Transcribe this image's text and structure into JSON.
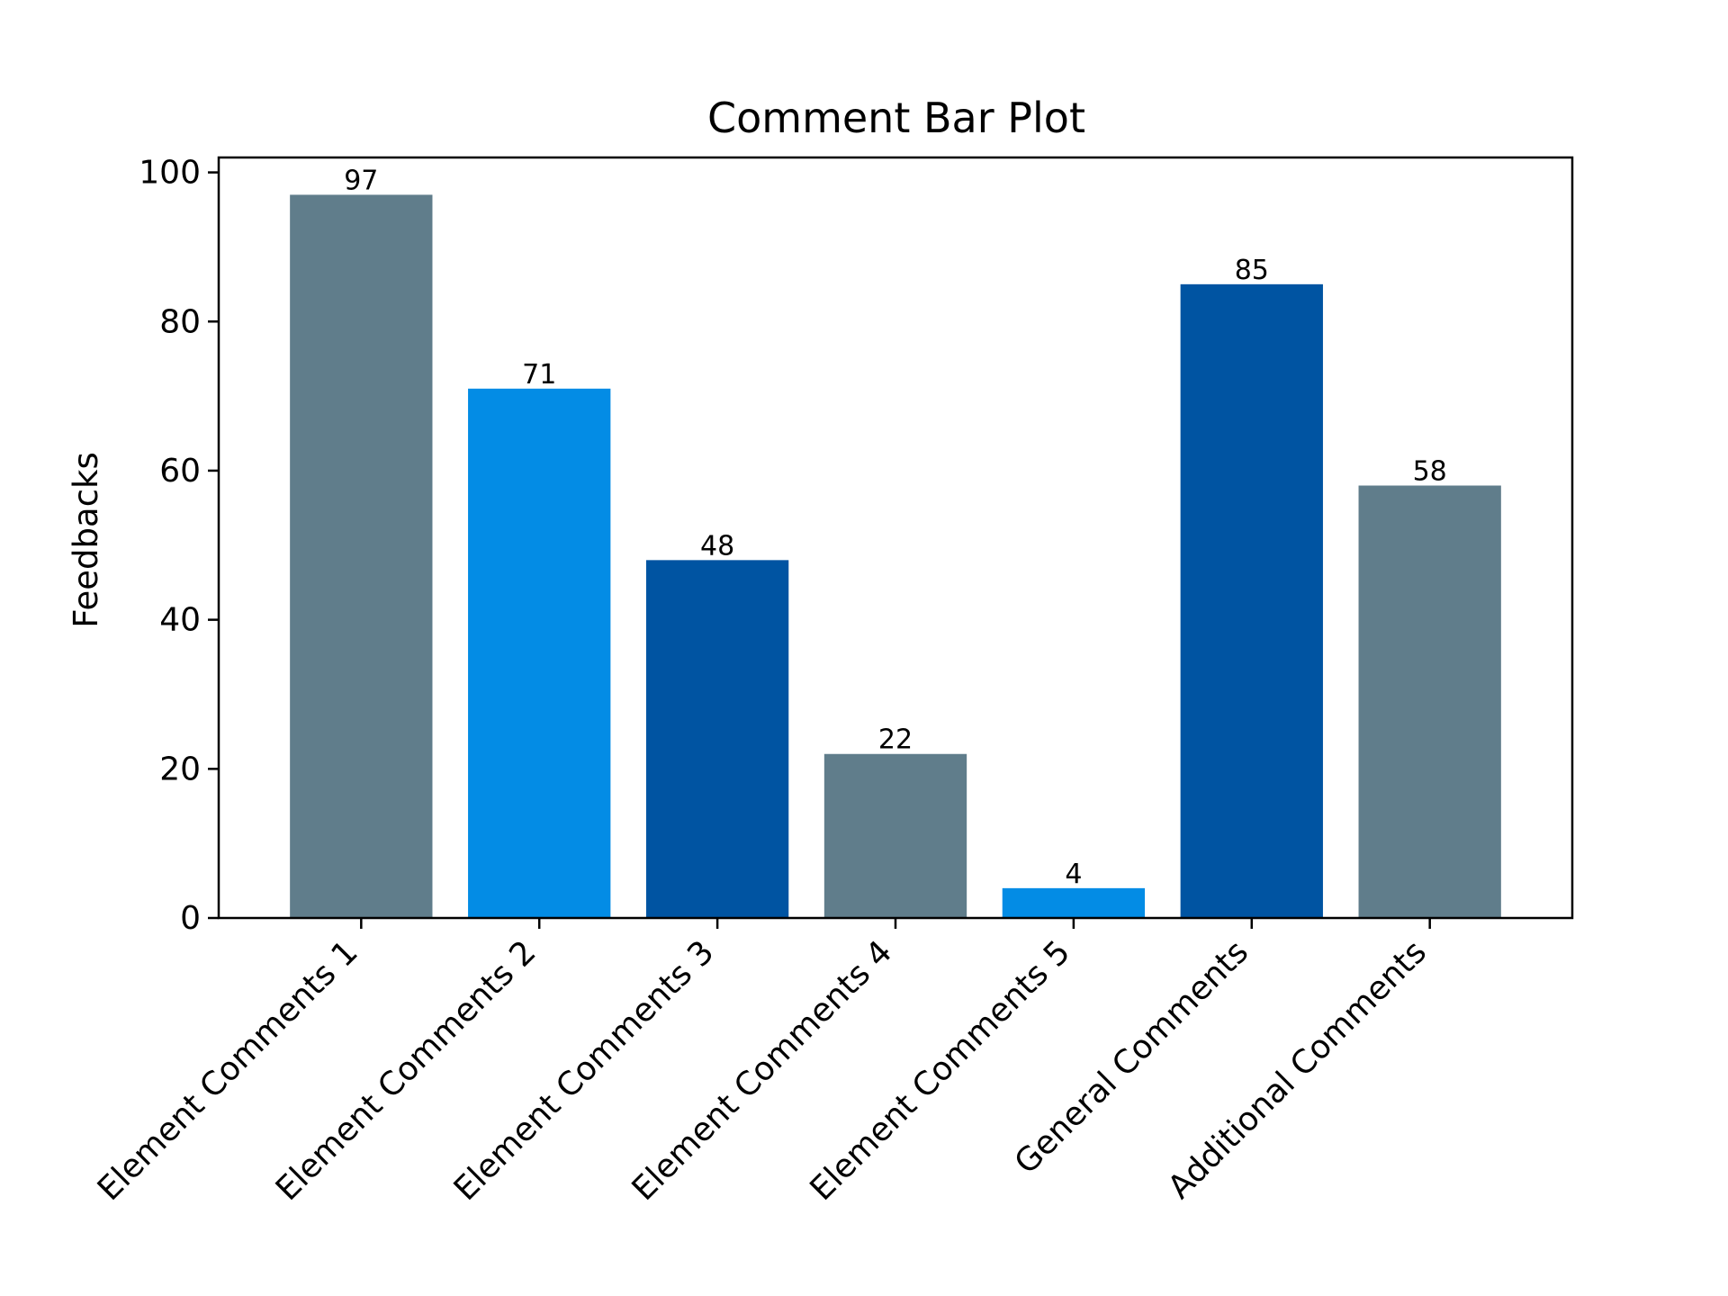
{
  "chart_data": {
    "type": "bar",
    "title": "Comment Bar Plot",
    "xlabel": "",
    "ylabel": "Feedbacks",
    "categories": [
      "Element Comments 1",
      "Element Comments 2",
      "Element Comments 3",
      "Element Comments 4",
      "Element Comments 5",
      "General Comments",
      "Additional Comments"
    ],
    "values": [
      97,
      71,
      48,
      22,
      4,
      85,
      58
    ],
    "colors": [
      "#607d8b",
      "#038ce5",
      "#0054a2",
      "#607d8b",
      "#038ce5",
      "#0054a2",
      "#607d8b"
    ],
    "ylim": [
      0,
      102
    ],
    "yticks": [
      0,
      20,
      40,
      60,
      80,
      100
    ],
    "data_labels": true,
    "grid": false,
    "legend": "none"
  }
}
